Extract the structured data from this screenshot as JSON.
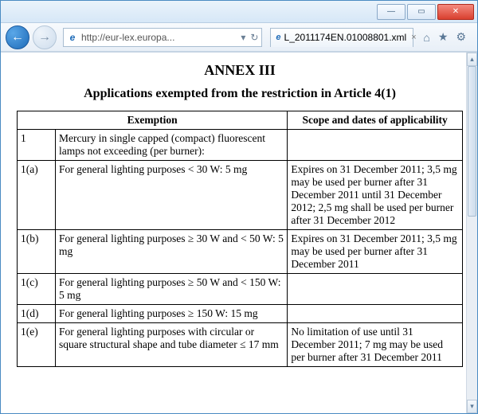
{
  "window": {
    "minimize": "—",
    "maximize": "▭",
    "close": "✕"
  },
  "nav": {
    "back": "←",
    "forward": "→",
    "url_display": "http://eur-lex.europa...",
    "dropdown": "▾",
    "refresh": "↻",
    "tab_title": "L_2011174EN.01008801.xml",
    "tab_close": "×",
    "home": "⌂",
    "favorites": "★",
    "settings": "⚙"
  },
  "doc": {
    "annex": "ANNEX III",
    "subtitle": "Applications exempted from the restriction in Article 4(1)",
    "headers": {
      "exemption": "Exemption",
      "scope": "Scope and dates of applicability"
    },
    "rows": [
      {
        "id": "1",
        "exemption": "Mercury in single capped (compact) fluorescent lamps not exceeding (per burner):",
        "scope": ""
      },
      {
        "id": "1(a)",
        "exemption": "For general lighting purposes < 30 W: 5 mg",
        "scope": "Expires on 31 December 2011; 3,5 mg may be used per burner after 31 December 2011 until 31 December 2012; 2,5 mg shall be used per burner after 31 December 2012"
      },
      {
        "id": "1(b)",
        "exemption": "For general lighting purposes ≥ 30 W and < 50 W: 5 mg",
        "scope": "Expires on 31 December 2011; 3,5 mg may be used per burner after 31 December 2011"
      },
      {
        "id": "1(c)",
        "exemption": "For general lighting purposes ≥ 50 W and < 150 W: 5 mg",
        "scope": ""
      },
      {
        "id": "1(d)",
        "exemption": "For general lighting purposes ≥ 150 W: 15 mg",
        "scope": ""
      },
      {
        "id": "1(e)",
        "exemption": "For general lighting purposes with circular or square structural shape and tube diameter ≤ 17 mm",
        "scope": "No limitation of use until 31 December 2011; 7 mg may be used per burner after 31 December 2011"
      }
    ]
  }
}
